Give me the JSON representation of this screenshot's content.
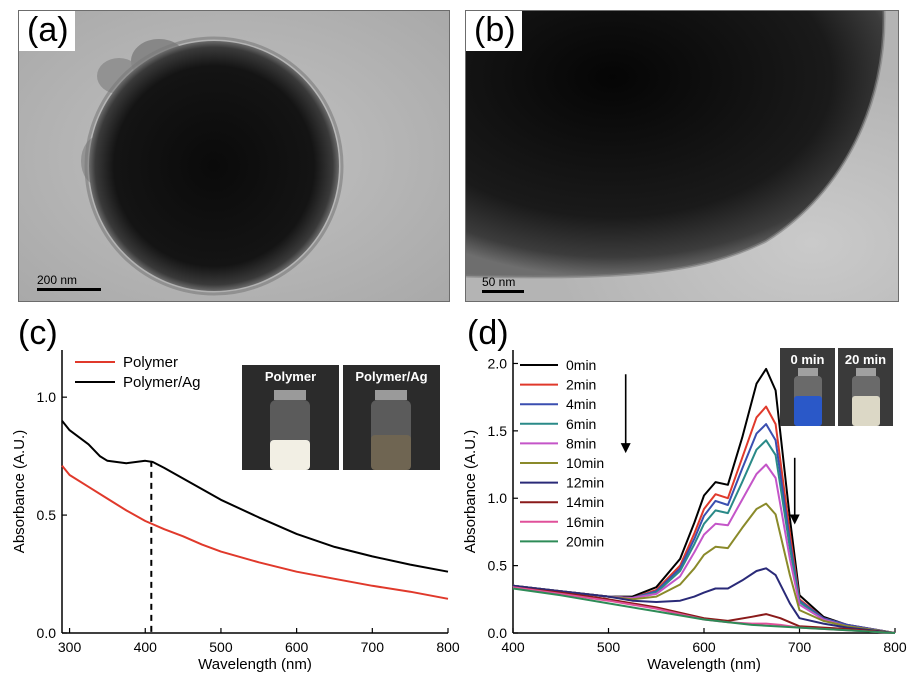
{
  "panels": {
    "a": {
      "letter": "(a)",
      "scalebar": "200 nm"
    },
    "b": {
      "letter": "(b)",
      "scalebar": "50 nm"
    },
    "c": {
      "letter": "(c)",
      "insets": [
        {
          "label": "Polymer",
          "color": "#f2efe4"
        },
        {
          "label": "Polymer/Ag",
          "color": "#6f6552"
        }
      ]
    },
    "d": {
      "letter": "(d)",
      "insets": [
        {
          "label": "0 min",
          "color": "#2a58c8"
        },
        {
          "label": "20 min",
          "color": "#dcd8c6"
        }
      ]
    }
  },
  "chart_data": [
    {
      "id": "c",
      "type": "line",
      "xlabel": "Wavelength (nm)",
      "ylabel": "Absorbance (A.U.)",
      "xlim": [
        290,
        800
      ],
      "ylim": [
        0.0,
        1.2
      ],
      "xticks": [
        300,
        400,
        500,
        600,
        700,
        800
      ],
      "yticks": [
        0.0,
        0.5,
        1.0
      ],
      "ytick_labels": [
        "0.0",
        "0.5",
        "1.0"
      ],
      "legend_position": "top-left",
      "annotation": {
        "type": "dashed-vertical-line",
        "x": 408,
        "y_from": 0.0,
        "y_to": 0.73
      },
      "series": [
        {
          "name": "Polymer",
          "color": "#e0392b",
          "x": [
            290,
            300,
            325,
            350,
            375,
            400,
            425,
            450,
            475,
            500,
            550,
            600,
            650,
            700,
            750,
            800
          ],
          "y": [
            0.71,
            0.67,
            0.62,
            0.57,
            0.52,
            0.475,
            0.44,
            0.41,
            0.375,
            0.345,
            0.3,
            0.26,
            0.23,
            0.2,
            0.175,
            0.145
          ]
        },
        {
          "name": "Polymer/Ag",
          "color": "#000000",
          "x": [
            290,
            300,
            325,
            340,
            350,
            375,
            400,
            410,
            425,
            450,
            475,
            500,
            550,
            600,
            650,
            700,
            750,
            800
          ],
          "y": [
            0.9,
            0.86,
            0.8,
            0.75,
            0.73,
            0.72,
            0.73,
            0.725,
            0.7,
            0.655,
            0.61,
            0.565,
            0.49,
            0.42,
            0.365,
            0.325,
            0.29,
            0.26
          ]
        }
      ]
    },
    {
      "id": "d",
      "type": "line",
      "xlabel": "Wavelength (nm)",
      "ylabel": "Absorbance (A.U.)",
      "xlim": [
        400,
        800
      ],
      "ylim": [
        0.0,
        2.1
      ],
      "xticks": [
        400,
        500,
        600,
        700,
        800
      ],
      "yticks": [
        0.0,
        0.5,
        1.0,
        1.5,
        2.0
      ],
      "ytick_labels": [
        "0.0",
        "0.5",
        "1.0",
        "1.5",
        "2.0"
      ],
      "legend_position": "top-left",
      "annotations": [
        {
          "type": "arrow-down",
          "x": 518,
          "y_from": 1.92,
          "y_to": 1.35
        },
        {
          "type": "arrow-down",
          "x": 695,
          "y_from": 1.3,
          "y_to": 0.82
        }
      ],
      "series": [
        {
          "name": "0min",
          "color": "#000000",
          "x": [
            400,
            450,
            500,
            525,
            550,
            575,
            590,
            600,
            612,
            625,
            640,
            655,
            665,
            675,
            690,
            700,
            725,
            750,
            800
          ],
          "y": [
            0.35,
            0.31,
            0.27,
            0.27,
            0.34,
            0.55,
            0.82,
            1.02,
            1.12,
            1.1,
            1.45,
            1.85,
            1.96,
            1.8,
            0.85,
            0.28,
            0.12,
            0.06,
            0.0
          ]
        },
        {
          "name": "2min",
          "color": "#e0392b",
          "x": [
            400,
            450,
            500,
            525,
            550,
            575,
            590,
            600,
            612,
            625,
            640,
            655,
            665,
            675,
            690,
            700,
            725,
            750,
            800
          ],
          "y": [
            0.35,
            0.31,
            0.27,
            0.26,
            0.32,
            0.5,
            0.74,
            0.92,
            1.03,
            1.0,
            1.3,
            1.6,
            1.68,
            1.55,
            0.74,
            0.25,
            0.11,
            0.06,
            0.0
          ]
        },
        {
          "name": "4min",
          "color": "#3a4fb0",
          "x": [
            400,
            450,
            500,
            525,
            550,
            575,
            590,
            600,
            612,
            625,
            640,
            655,
            665,
            675,
            690,
            700,
            725,
            750,
            800
          ],
          "y": [
            0.35,
            0.31,
            0.27,
            0.26,
            0.31,
            0.48,
            0.7,
            0.87,
            0.98,
            0.95,
            1.22,
            1.48,
            1.55,
            1.43,
            0.68,
            0.24,
            0.11,
            0.06,
            0.0
          ]
        },
        {
          "name": "6min",
          "color": "#2a8a88",
          "x": [
            400,
            450,
            500,
            525,
            550,
            575,
            590,
            600,
            612,
            625,
            640,
            655,
            665,
            675,
            690,
            700,
            725,
            750,
            800
          ],
          "y": [
            0.35,
            0.31,
            0.27,
            0.26,
            0.3,
            0.46,
            0.66,
            0.81,
            0.91,
            0.89,
            1.12,
            1.36,
            1.43,
            1.32,
            0.63,
            0.23,
            0.1,
            0.05,
            0.0
          ]
        },
        {
          "name": "8min",
          "color": "#c455c8",
          "x": [
            400,
            450,
            500,
            525,
            550,
            575,
            590,
            600,
            612,
            625,
            640,
            655,
            665,
            675,
            690,
            700,
            725,
            750,
            800
          ],
          "y": [
            0.35,
            0.31,
            0.27,
            0.26,
            0.29,
            0.42,
            0.6,
            0.73,
            0.81,
            0.8,
            0.99,
            1.18,
            1.25,
            1.15,
            0.55,
            0.21,
            0.1,
            0.05,
            0.0
          ]
        },
        {
          "name": "10min",
          "color": "#8a8a2a",
          "x": [
            400,
            450,
            500,
            525,
            550,
            575,
            590,
            600,
            612,
            625,
            640,
            655,
            665,
            675,
            690,
            700,
            725,
            750,
            800
          ],
          "y": [
            0.35,
            0.31,
            0.27,
            0.25,
            0.27,
            0.36,
            0.48,
            0.58,
            0.64,
            0.63,
            0.78,
            0.92,
            0.96,
            0.88,
            0.43,
            0.17,
            0.09,
            0.05,
            0.0
          ]
        },
        {
          "name": "12min",
          "color": "#2a2a78",
          "x": [
            400,
            450,
            500,
            525,
            550,
            575,
            590,
            600,
            612,
            625,
            640,
            655,
            665,
            675,
            690,
            700,
            725,
            750,
            800
          ],
          "y": [
            0.35,
            0.31,
            0.27,
            0.24,
            0.23,
            0.24,
            0.27,
            0.3,
            0.33,
            0.33,
            0.39,
            0.46,
            0.48,
            0.43,
            0.22,
            0.11,
            0.07,
            0.04,
            0.0
          ]
        },
        {
          "name": "14min",
          "color": "#8a1a1a",
          "x": [
            400,
            450,
            500,
            550,
            600,
            625,
            650,
            665,
            680,
            700,
            750,
            800
          ],
          "y": [
            0.34,
            0.3,
            0.25,
            0.19,
            0.11,
            0.09,
            0.12,
            0.14,
            0.11,
            0.05,
            0.03,
            0.0
          ]
        },
        {
          "name": "16min",
          "color": "#e0509a",
          "x": [
            400,
            450,
            500,
            550,
            600,
            625,
            650,
            665,
            680,
            700,
            750,
            800
          ],
          "y": [
            0.34,
            0.29,
            0.24,
            0.18,
            0.1,
            0.08,
            0.07,
            0.07,
            0.06,
            0.04,
            0.02,
            0.0
          ]
        },
        {
          "name": "20min",
          "color": "#2e8b57",
          "x": [
            400,
            450,
            500,
            550,
            600,
            650,
            700,
            750,
            800
          ],
          "y": [
            0.33,
            0.28,
            0.22,
            0.16,
            0.1,
            0.06,
            0.04,
            0.02,
            0.0
          ]
        }
      ]
    }
  ]
}
